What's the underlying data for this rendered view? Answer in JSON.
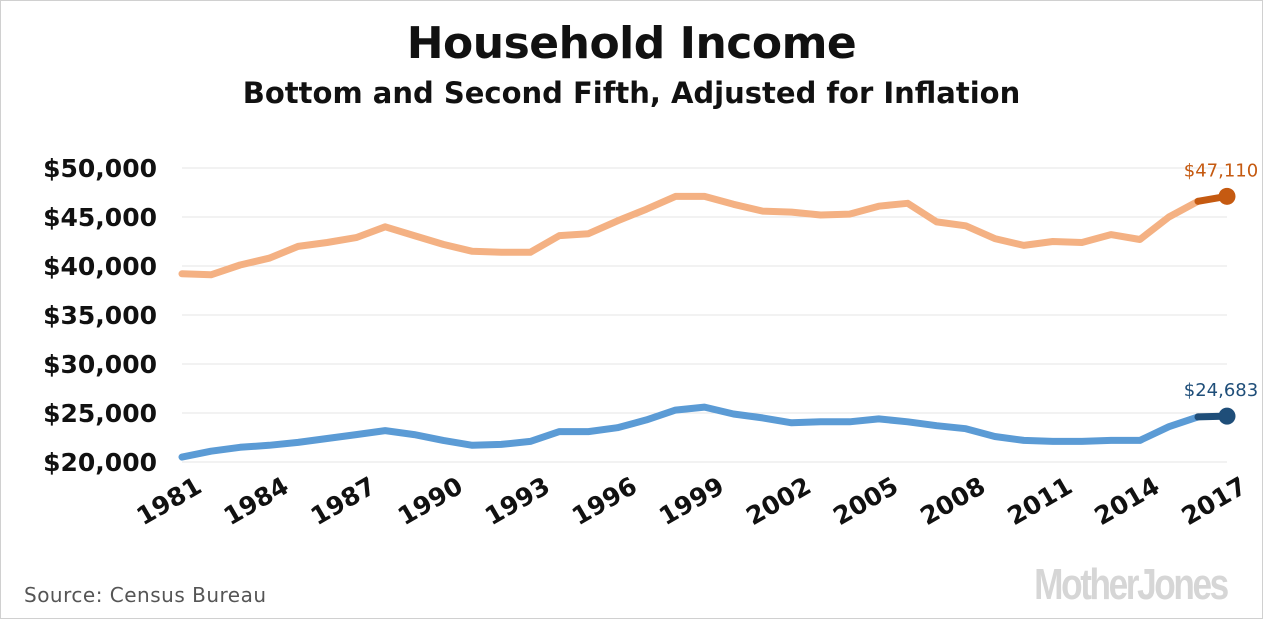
{
  "chart_data": {
    "type": "line",
    "title": "Household Income",
    "subtitle": "Bottom and Second Fifth, Adjusted for Inflation",
    "xlabel": "",
    "ylabel": "",
    "ylim": [
      20000,
      50000
    ],
    "yticks": [
      "$20,000",
      "$25,000",
      "$30,000",
      "$35,000",
      "$40,000",
      "$45,000",
      "$50,000"
    ],
    "ytick_values": [
      20000,
      25000,
      30000,
      35000,
      40000,
      45000,
      50000
    ],
    "xtick_labels": [
      "1981",
      "1984",
      "1987",
      "1990",
      "1993",
      "1996",
      "1999",
      "2002",
      "2005",
      "2008",
      "2011",
      "2014",
      "2017"
    ],
    "xtick_indices": [
      0,
      3,
      6,
      9,
      12,
      15,
      18,
      21,
      24,
      27,
      30,
      33,
      36
    ],
    "grid": true,
    "legend": "none",
    "series": [
      {
        "color": "#f4b183",
        "end_color": "#c55a11",
        "end_label": "$47,110",
        "values": [
          39200,
          39100,
          40100,
          40800,
          42000,
          42400,
          42900,
          44000,
          43100,
          42200,
          41500,
          41400,
          41400,
          43100,
          43300,
          44600,
          45800,
          47100,
          47100,
          46300,
          45600,
          45500,
          45200,
          45300,
          46100,
          46400,
          44500,
          44100,
          42800,
          42100,
          42500,
          42400,
          43200,
          42700,
          45000,
          46600,
          47110
        ]
      },
      {
        "color": "#5b9bd5",
        "end_color": "#1f4e79",
        "end_label": "$24,683",
        "values": [
          20500,
          21100,
          21500,
          21700,
          22000,
          22400,
          22800,
          23200,
          22800,
          22200,
          21700,
          21800,
          22100,
          23100,
          23100,
          23500,
          24300,
          25300,
          25600,
          24900,
          24500,
          24000,
          24100,
          24100,
          24400,
          24100,
          23700,
          23400,
          22600,
          22200,
          22100,
          22100,
          22200,
          22200,
          23600,
          24600,
          24683
        ]
      }
    ]
  },
  "source": "Source:  Census Bureau",
  "logo": "MotherJones"
}
